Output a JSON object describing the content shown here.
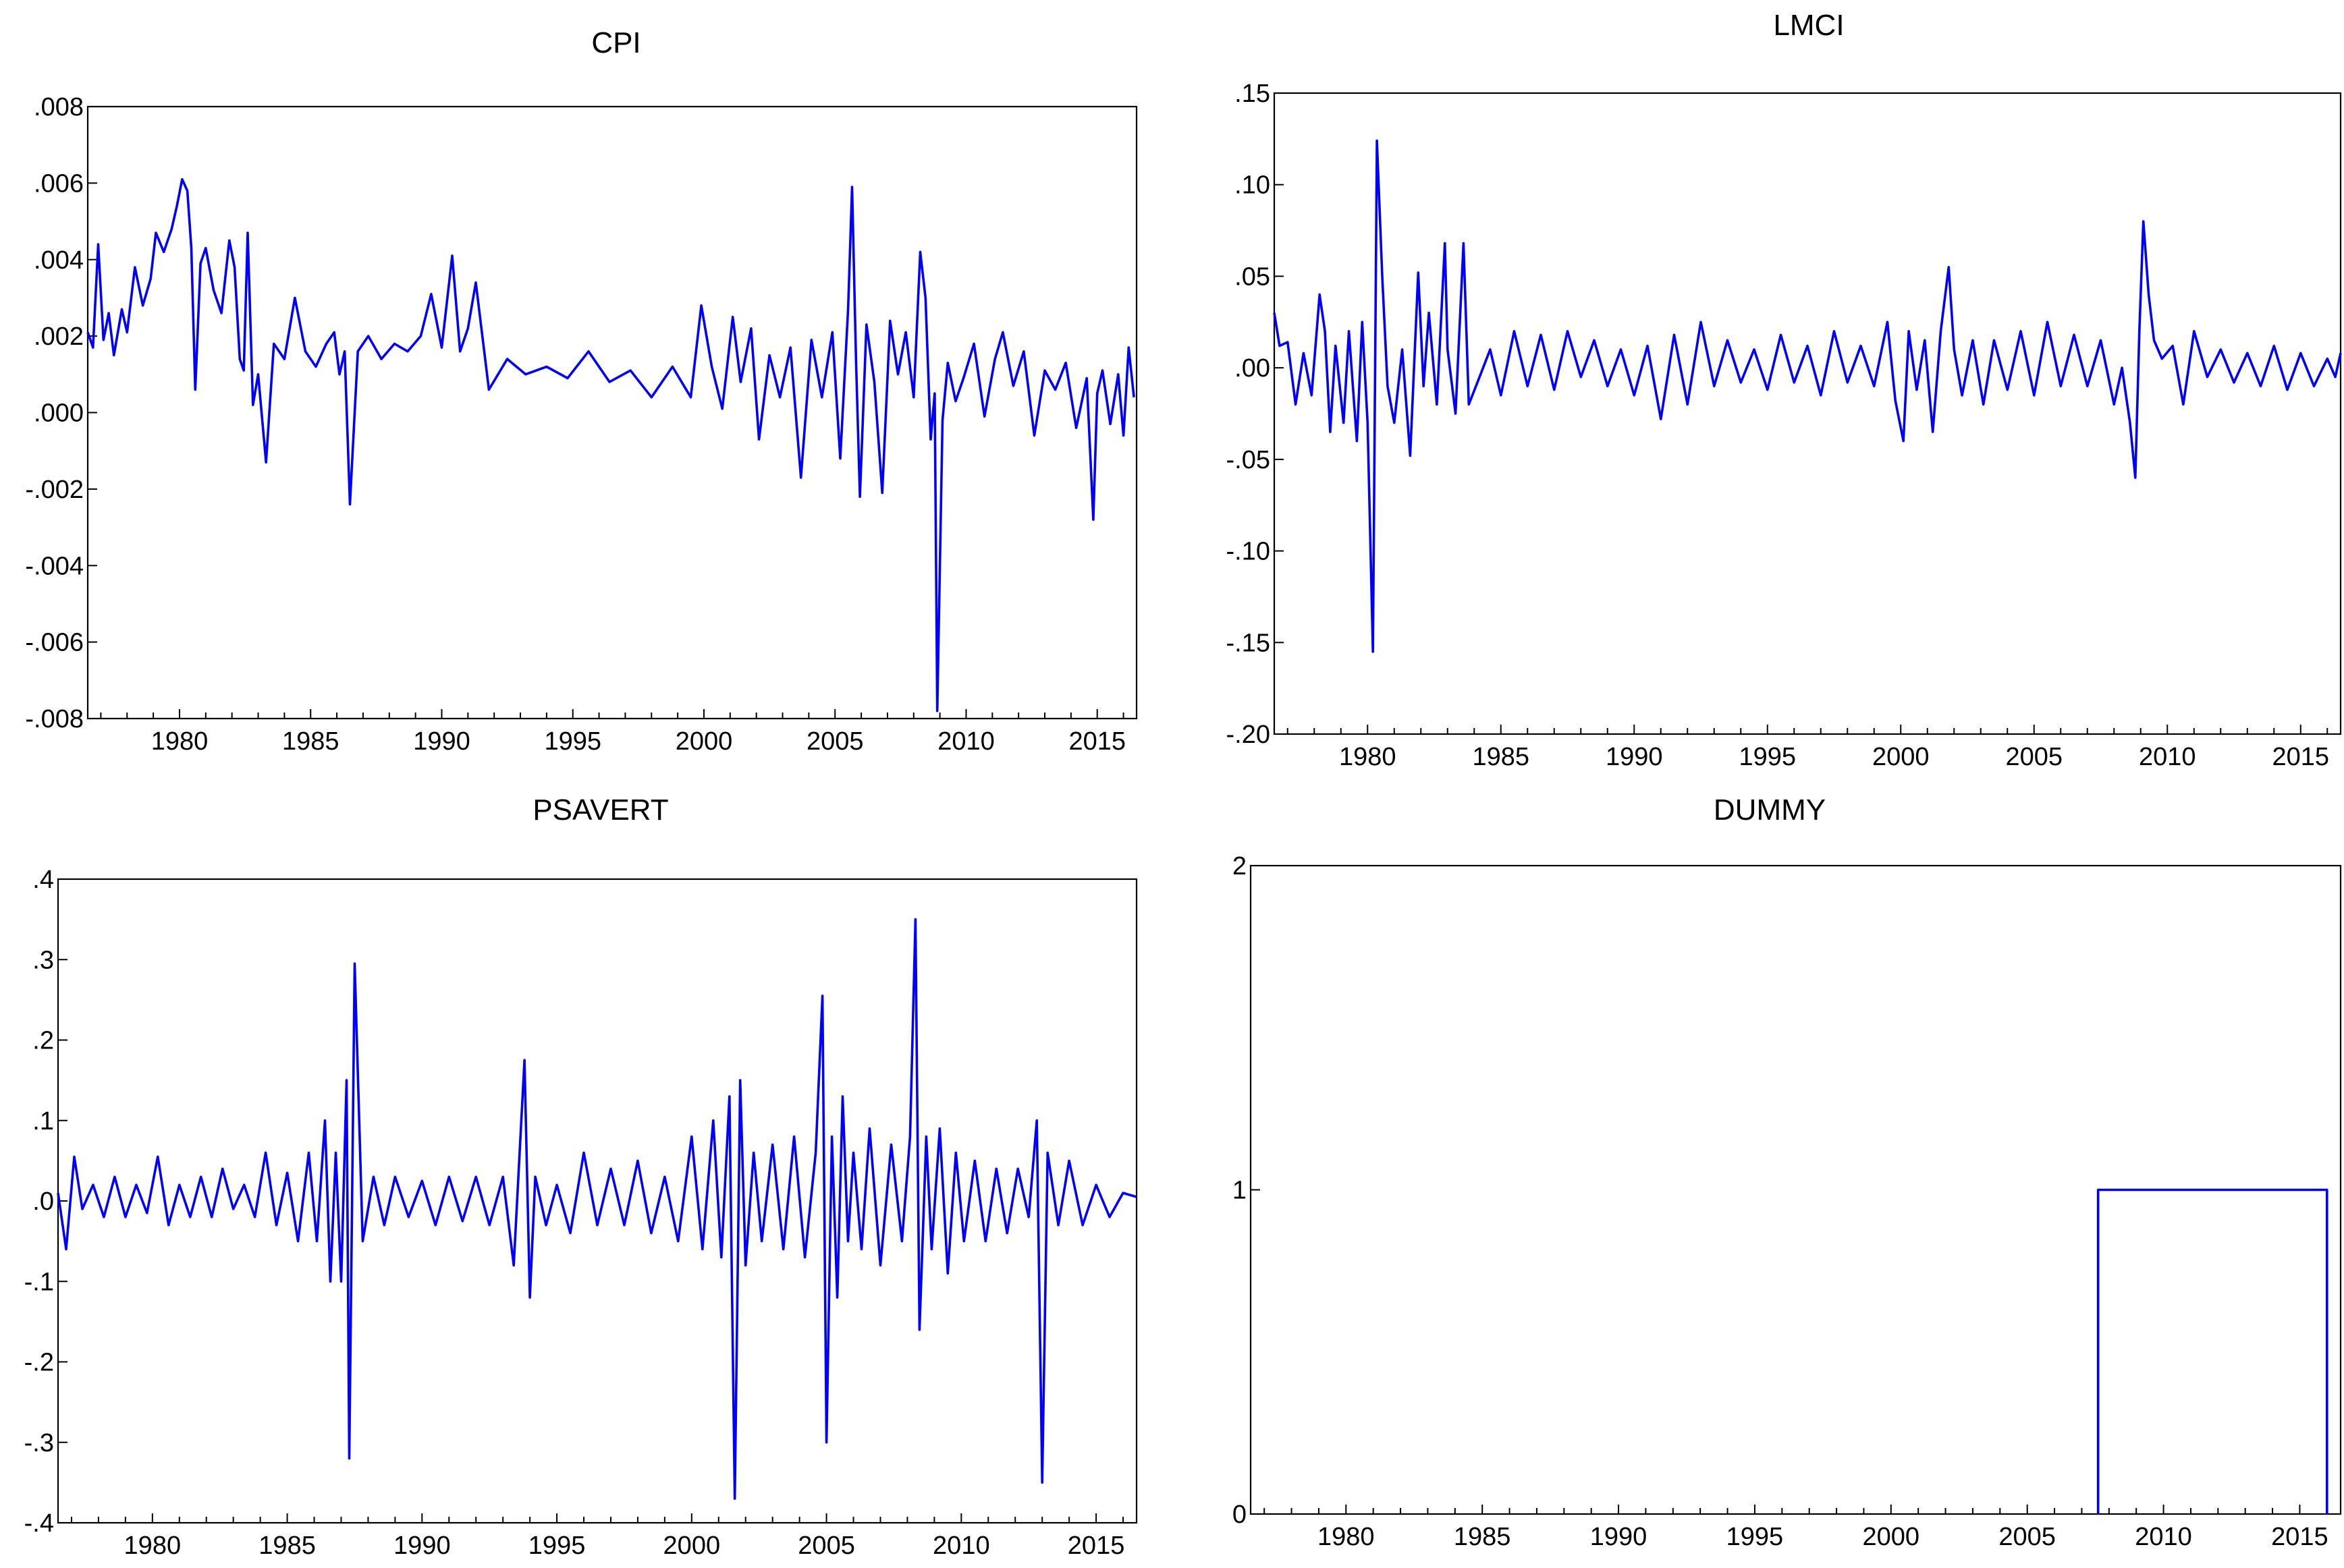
{
  "chart_data": [
    {
      "type": "line",
      "title": "CPI",
      "color": "#0000ff",
      "xlim": [
        1976.5,
        2016.5
      ],
      "ylim": [
        -0.008,
        0.008
      ],
      "xticks": [
        1980,
        1985,
        1990,
        1995,
        2000,
        2005,
        2010,
        2015
      ],
      "xtick_labels": [
        "1980",
        "1985",
        "1990",
        "1995",
        "2000",
        "2005",
        "2010",
        "2015"
      ],
      "yticks": [
        0.008,
        0.006,
        0.004,
        0.002,
        0.0,
        -0.002,
        -0.004,
        -0.006,
        -0.008
      ],
      "ytick_labels": [
        ".008",
        ".006",
        ".004",
        ".002",
        ".000",
        "-.002",
        "-.004",
        "-.006",
        "-.008"
      ],
      "series": [
        {
          "x": [
            1976.5,
            1976.7,
            1976.9,
            1977.1,
            1977.3,
            1977.5,
            1977.8,
            1978.0,
            1978.3,
            1978.6,
            1978.9,
            1979.1,
            1979.4,
            1979.7,
            1979.9,
            1980.1,
            1980.3,
            1980.45,
            1980.6,
            1980.8,
            1981.0,
            1981.3,
            1981.6,
            1981.9,
            1982.1,
            1982.3,
            1982.45,
            1982.6,
            1982.8,
            1983.0,
            1983.3,
            1983.6,
            1984.0,
            1984.4,
            1984.8,
            1985.2,
            1985.6,
            1985.9,
            1986.1,
            1986.3,
            1986.5,
            1986.8,
            1987.2,
            1987.7,
            1988.2,
            1988.7,
            1989.2,
            1989.6,
            1990.0,
            1990.4,
            1990.7,
            1991.0,
            1991.3,
            1991.8,
            1992.5,
            1993.2,
            1994.0,
            1994.8,
            1995.6,
            1996.4,
            1997.2,
            1998.0,
            1998.8,
            1999.5,
            1999.9,
            2000.3,
            2000.7,
            2001.1,
            2001.4,
            2001.8,
            2002.1,
            2002.5,
            2002.9,
            2003.3,
            2003.7,
            2004.1,
            2004.5,
            2004.9,
            2005.2,
            2005.5,
            2005.65,
            2005.8,
            2005.95,
            2006.2,
            2006.5,
            2006.8,
            2007.1,
            2007.4,
            2007.7,
            2008.0,
            2008.25,
            2008.45,
            2008.65,
            2008.8,
            2008.9,
            2009.1,
            2009.3,
            2009.6,
            2009.9,
            2010.3,
            2010.7,
            2011.1,
            2011.4,
            2011.8,
            2012.2,
            2012.6,
            2013.0,
            2013.4,
            2013.8,
            2014.2,
            2014.6,
            2014.85,
            2015.0,
            2015.2,
            2015.5,
            2015.8,
            2016.0,
            2016.2,
            2016.4
          ],
          "y": [
            0.0021,
            0.0017,
            0.0044,
            0.0019,
            0.0026,
            0.0015,
            0.0027,
            0.0021,
            0.0038,
            0.0028,
            0.0035,
            0.0047,
            0.0042,
            0.0048,
            0.0054,
            0.0061,
            0.0058,
            0.0043,
            0.0006,
            0.0039,
            0.0043,
            0.0032,
            0.0026,
            0.0045,
            0.0038,
            0.0014,
            0.0011,
            0.0047,
            0.0002,
            0.001,
            -0.0013,
            0.0018,
            0.0014,
            0.003,
            0.0016,
            0.0012,
            0.0018,
            0.0021,
            0.001,
            0.0016,
            -0.0024,
            0.0016,
            0.002,
            0.0014,
            0.0018,
            0.0016,
            0.002,
            0.0031,
            0.0017,
            0.0041,
            0.0016,
            0.0022,
            0.0034,
            0.0006,
            0.0014,
            0.001,
            0.0012,
            0.0009,
            0.0016,
            0.0008,
            0.0011,
            0.0004,
            0.0012,
            0.0004,
            0.0028,
            0.0012,
            0.0001,
            0.0025,
            0.0008,
            0.0022,
            -0.0007,
            0.0015,
            0.0004,
            0.0017,
            -0.0017,
            0.0019,
            0.0004,
            0.0021,
            -0.0012,
            0.0027,
            0.0059,
            0.0014,
            -0.0022,
            0.0023,
            0.0008,
            -0.0021,
            0.0024,
            0.001,
            0.0021,
            0.0004,
            0.0042,
            0.003,
            -0.0007,
            0.0005,
            -0.0078,
            -0.0002,
            0.0013,
            0.0003,
            0.0009,
            0.0018,
            -0.0001,
            0.0014,
            0.0021,
            0.0007,
            0.0016,
            -0.0006,
            0.0011,
            0.0006,
            0.0013,
            -0.0004,
            0.0009,
            -0.0028,
            0.0005,
            0.0011,
            -0.0003,
            0.001,
            -0.0006,
            0.0017,
            0.0004
          ]
        }
      ]
    },
    {
      "type": "line",
      "title": "LMCI",
      "color": "#0000ff",
      "xlim": [
        1976.5,
        2016.5
      ],
      "ylim": [
        -0.2,
        0.15
      ],
      "xticks": [
        1980,
        1985,
        1990,
        1995,
        2000,
        2005,
        2010,
        2015
      ],
      "xtick_labels": [
        "1980",
        "1985",
        "1990",
        "1995",
        "2000",
        "2005",
        "2010",
        "2015"
      ],
      "yticks": [
        0.15,
        0.1,
        0.05,
        0.0,
        -0.05,
        -0.1,
        -0.15,
        -0.2
      ],
      "ytick_labels": [
        ".15",
        ".10",
        ".05",
        ".00",
        "-.05",
        "-.10",
        "-.15",
        "-.20"
      ],
      "series": [
        {
          "x": [
            1976.5,
            1976.7,
            1977.0,
            1977.3,
            1977.6,
            1977.9,
            1978.2,
            1978.4,
            1978.6,
            1978.8,
            1979.1,
            1979.3,
            1979.6,
            1979.8,
            1980.0,
            1980.2,
            1980.35,
            1980.55,
            1980.75,
            1981.0,
            1981.3,
            1981.6,
            1981.9,
            1982.1,
            1982.3,
            1982.6,
            1982.9,
            1983.0,
            1983.3,
            1983.6,
            1983.8,
            1984.2,
            1984.6,
            1985.0,
            1985.5,
            1986.0,
            1986.5,
            1987.0,
            1987.5,
            1988.0,
            1988.5,
            1989.0,
            1989.5,
            1990.0,
            1990.5,
            1991.0,
            1991.5,
            1992.0,
            1992.5,
            1993.0,
            1993.5,
            1994.0,
            1994.5,
            1995.0,
            1995.5,
            1996.0,
            1996.5,
            1997.0,
            1997.5,
            1998.0,
            1998.5,
            1999.0,
            1999.5,
            1999.8,
            2000.1,
            2000.3,
            2000.6,
            2000.9,
            2001.2,
            2001.5,
            2001.8,
            2002.0,
            2002.3,
            2002.7,
            2003.1,
            2003.5,
            2004.0,
            2004.5,
            2005.0,
            2005.5,
            2006.0,
            2006.5,
            2007.0,
            2007.5,
            2008.0,
            2008.3,
            2008.6,
            2008.8,
            2008.95,
            2009.1,
            2009.3,
            2009.5,
            2009.8,
            2010.2,
            2010.6,
            2011.0,
            2011.5,
            2012.0,
            2012.5,
            2013.0,
            2013.5,
            2014.0,
            2014.5,
            2015.0,
            2015.5,
            2016.0,
            2016.3,
            2016.5
          ],
          "y": [
            0.03,
            0.012,
            0.014,
            -0.02,
            0.008,
            -0.015,
            0.04,
            0.02,
            -0.035,
            0.012,
            -0.03,
            0.02,
            -0.04,
            0.025,
            -0.03,
            -0.155,
            0.124,
            0.05,
            -0.01,
            -0.03,
            0.01,
            -0.048,
            0.052,
            -0.01,
            0.03,
            -0.02,
            0.068,
            0.01,
            -0.025,
            0.068,
            -0.02,
            -0.005,
            0.01,
            -0.015,
            0.02,
            -0.01,
            0.018,
            -0.012,
            0.02,
            -0.005,
            0.015,
            -0.01,
            0.01,
            -0.015,
            0.012,
            -0.028,
            0.018,
            -0.02,
            0.025,
            -0.01,
            0.015,
            -0.008,
            0.01,
            -0.012,
            0.018,
            -0.008,
            0.012,
            -0.015,
            0.02,
            -0.008,
            0.012,
            -0.01,
            0.025,
            -0.018,
            -0.04,
            0.02,
            -0.012,
            0.015,
            -0.035,
            0.02,
            0.055,
            0.01,
            -0.015,
            0.015,
            -0.02,
            0.015,
            -0.012,
            0.02,
            -0.015,
            0.025,
            -0.01,
            0.018,
            -0.01,
            0.015,
            -0.02,
            0.0,
            -0.03,
            -0.06,
            0.02,
            0.08,
            0.04,
            0.015,
            0.005,
            0.012,
            -0.02,
            0.02,
            -0.005,
            0.01,
            -0.008,
            0.008,
            -0.01,
            0.012,
            -0.012,
            0.008,
            -0.01,
            0.005,
            -0.005,
            0.008
          ]
        }
      ]
    },
    {
      "type": "line",
      "title": "PSAVERT",
      "color": "#0000ff",
      "xlim": [
        1976.5,
        2016.5
      ],
      "ylim": [
        -0.4,
        0.4
      ],
      "xticks": [
        1980,
        1985,
        1990,
        1995,
        2000,
        2005,
        2010,
        2015
      ],
      "xtick_labels": [
        "1980",
        "1985",
        "1990",
        "1995",
        "2000",
        "2005",
        "2010",
        "2015"
      ],
      "yticks": [
        0.4,
        0.3,
        0.2,
        0.1,
        0.0,
        -0.1,
        -0.2,
        -0.3,
        -0.4
      ],
      "ytick_labels": [
        ".4",
        ".3",
        ".2",
        ".1",
        ".0",
        "-.1",
        "-.2",
        "-.3",
        "-.4"
      ],
      "series": [
        {
          "x": [
            1976.5,
            1976.8,
            1977.1,
            1977.4,
            1977.8,
            1978.2,
            1978.6,
            1979.0,
            1979.4,
            1979.8,
            1980.2,
            1980.6,
            1981.0,
            1981.4,
            1981.8,
            1982.2,
            1982.6,
            1983.0,
            1983.4,
            1983.8,
            1984.2,
            1984.6,
            1985.0,
            1985.4,
            1985.8,
            1986.1,
            1986.4,
            1986.6,
            1986.8,
            1987.0,
            1987.2,
            1987.3,
            1987.5,
            1987.8,
            1988.2,
            1988.6,
            1989.0,
            1989.5,
            1990.0,
            1990.5,
            1991.0,
            1991.5,
            1992.0,
            1992.5,
            1993.0,
            1993.4,
            1993.8,
            1994.0,
            1994.2,
            1994.6,
            1995.0,
            1995.5,
            1996.0,
            1996.5,
            1997.0,
            1997.5,
            1998.0,
            1998.5,
            1999.0,
            1999.5,
            2000.0,
            2000.4,
            2000.8,
            2001.1,
            2001.4,
            2001.6,
            2001.8,
            2002.0,
            2002.3,
            2002.6,
            2003.0,
            2003.4,
            2003.8,
            2004.2,
            2004.6,
            2004.85,
            2005.0,
            2005.2,
            2005.4,
            2005.6,
            2005.8,
            2006.0,
            2006.3,
            2006.6,
            2007.0,
            2007.4,
            2007.8,
            2008.1,
            2008.3,
            2008.45,
            2008.7,
            2008.9,
            2009.2,
            2009.5,
            2009.8,
            2010.1,
            2010.5,
            2010.9,
            2011.3,
            2011.7,
            2012.1,
            2012.5,
            2012.8,
            2013.0,
            2013.2,
            2013.6,
            2014.0,
            2014.5,
            2015.0,
            2015.5,
            2016.0,
            2016.5
          ],
          "y": [
            0.01,
            -0.06,
            0.055,
            -0.01,
            0.02,
            -0.02,
            0.03,
            -0.02,
            0.02,
            -0.015,
            0.055,
            -0.03,
            0.02,
            -0.02,
            0.03,
            -0.02,
            0.04,
            -0.01,
            0.02,
            -0.02,
            0.06,
            -0.03,
            0.035,
            -0.05,
            0.06,
            -0.05,
            0.1,
            -0.1,
            0.06,
            -0.1,
            0.15,
            -0.32,
            0.295,
            -0.05,
            0.03,
            -0.03,
            0.03,
            -0.02,
            0.025,
            -0.03,
            0.03,
            -0.025,
            0.03,
            -0.03,
            0.03,
            -0.08,
            0.175,
            -0.12,
            0.03,
            -0.03,
            0.02,
            -0.04,
            0.06,
            -0.03,
            0.04,
            -0.03,
            0.05,
            -0.04,
            0.03,
            -0.05,
            0.08,
            -0.06,
            0.1,
            -0.07,
            0.13,
            -0.37,
            0.15,
            -0.08,
            0.06,
            -0.05,
            0.07,
            -0.06,
            0.08,
            -0.07,
            0.06,
            0.255,
            -0.3,
            0.08,
            -0.12,
            0.13,
            -0.05,
            0.06,
            -0.06,
            0.09,
            -0.08,
            0.07,
            -0.05,
            0.08,
            0.35,
            -0.16,
            0.08,
            -0.06,
            0.09,
            -0.09,
            0.06,
            -0.05,
            0.05,
            -0.05,
            0.04,
            -0.04,
            0.04,
            -0.02,
            0.1,
            -0.35,
            0.06,
            -0.03,
            0.05,
            -0.03,
            0.02,
            -0.02,
            0.01,
            0.005
          ]
        }
      ]
    },
    {
      "type": "line",
      "title": "DUMMY",
      "color": "#0000ff",
      "xlim": [
        1976.5,
        2016.5
      ],
      "ylim": [
        0,
        2
      ],
      "xticks": [
        1980,
        1985,
        1990,
        1995,
        2000,
        2005,
        2010,
        2015
      ],
      "xtick_labels": [
        "1980",
        "1985",
        "1990",
        "1995",
        "2000",
        "2005",
        "2010",
        "2015"
      ],
      "yticks": [
        2,
        1,
        0
      ],
      "ytick_labels": [
        "2",
        "1",
        "0"
      ],
      "series": [
        {
          "x": [
            2007.6,
            2007.6,
            2016.0,
            2016.0
          ],
          "y": [
            0,
            1,
            1,
            0
          ]
        }
      ]
    }
  ]
}
